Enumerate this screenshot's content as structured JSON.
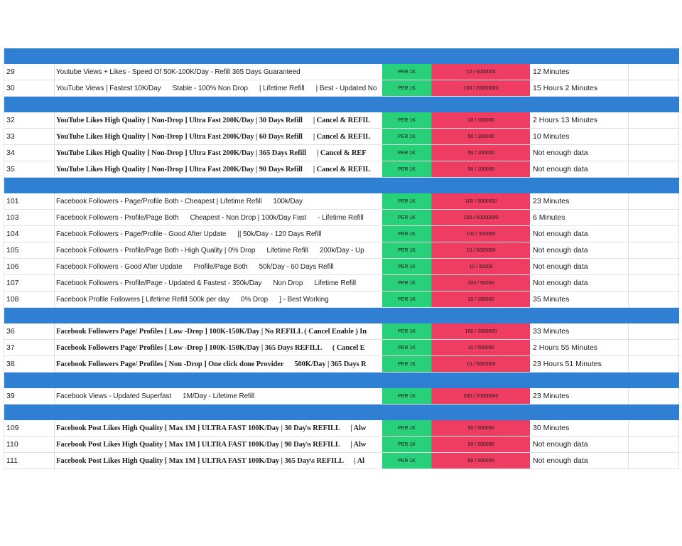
{
  "colors": {
    "separator": "#2f7fd3",
    "unit_cell": "#27d079",
    "range_cell": "#ee3c62"
  },
  "rows": [
    {
      "type": "sep"
    },
    {
      "type": "svc",
      "id": "29",
      "name": "Youtube Views + Likes - Speed Of 50K-100K/Day - Refill 365 Days Guaranteed",
      "unit": "PER 1K",
      "range": "10 / 5000000",
      "time": "12 Minutes"
    },
    {
      "type": "svc",
      "id": "30",
      "name": "YouTube Views | Fastest 10K/Day      Stable - 100% Non Drop      | Lifetime Refill      | Best - Updated No",
      "unit": "PER 1K",
      "range": "100 / 20000000",
      "time": "15 Hours 2 Minutes"
    },
    {
      "type": "sep"
    },
    {
      "type": "svc",
      "id": "32",
      "name": "YouTube Likes High Quality [ Non-Drop ] Ultra Fast 200K/Day | 30 Days Refill      | Cancel & REFIL",
      "unit": "PER 1K",
      "range": "10 / 100000",
      "time": "2 Hours 13 Minutes"
    },
    {
      "type": "svc",
      "id": "33",
      "name": "YouTube Likes High Quality [ Non-Drop ] Ultra Fast 200K/Day | 60 Days Refill      | Cancel & REFIL",
      "unit": "PER 1K",
      "range": "50 / 100000",
      "time": "10 Minutes"
    },
    {
      "type": "svc",
      "id": "34",
      "name": "YouTube Likes High Quality [ Non-Drop ] Ultra Fast 200K/Day | 365 Days Refill      | Cancel & REF",
      "unit": "PER 1K",
      "range": "50 / 100000",
      "time": "Not enough data"
    },
    {
      "type": "svc",
      "id": "35",
      "name": "YouTube Likes High Quality [ Non-Drop ] Ultra Fast 200K/Day | 90 Days Refill      | Cancel & REFIL",
      "unit": "PER 1K",
      "range": "50 / 100000",
      "time": "Not enough data"
    },
    {
      "type": "sep"
    },
    {
      "type": "svc",
      "id": "101",
      "name": "Facebook Followers - Page/Profile Both - Cheapest | Lifetime Refill      100k/Day",
      "unit": "PER 1K",
      "range": "100 / 5000000",
      "time": "23 Minutes"
    },
    {
      "type": "svc",
      "id": "103",
      "name": "Facebook Followers - Profile/Page Both      Cheapest - Non Drop | 100k/Day Fast      - Lifetime Refill",
      "unit": "PER 1K",
      "range": "100 / 50000000",
      "time": "6 Minutes"
    },
    {
      "type": "svc",
      "id": "104",
      "name": "Facebook Followers - Page/Profile - Good After Update      || 50k/Day - 120 Days Refill",
      "unit": "PER 1K",
      "range": "100 / 500000",
      "time": "Not enough data"
    },
    {
      "type": "svc",
      "id": "105",
      "name": "Facebook Followers - Profile/Page Both - High Quality | 0% Drop      Lifetime Refill      200k/Day - Up",
      "unit": "PER 1K",
      "range": "10 / 5000000",
      "time": "Not enough data"
    },
    {
      "type": "svc",
      "id": "106",
      "name": "Facebook Followers - Good After Update      Profile/Page Both      50k/Day - 60 Days Refill",
      "unit": "PER 1K",
      "range": "10 / 50000",
      "time": "Not enough data"
    },
    {
      "type": "svc",
      "id": "107",
      "name": "Facebook Followers - Profile/Page - Updated & Fastest - 350k/Day      Non Drop      Lifetime Refill",
      "unit": "PER 1K",
      "range": "100 / 50000",
      "time": "Not enough data"
    },
    {
      "type": "svc",
      "id": "108",
      "name": "Facebook Profile Followers [ Lifetime Refill 500k per day      0% Drop      ] - Best Working",
      "unit": "PER 1K",
      "range": "10 / 100000",
      "time": "35 Minutes"
    },
    {
      "type": "sep"
    },
    {
      "type": "svc",
      "id": "36",
      "name": "Facebook Followers Page/ Profiles [ Low -Drop ] 100K-150K/Day | No REFILL ( Cancel Enable ) In",
      "unit": "PER 1K",
      "range": "100 / 1000000",
      "time": "33 Minutes"
    },
    {
      "type": "svc",
      "id": "37",
      "name": "Facebook Followers Page/ Profiles [ Low -Drop ] 100K-150K/Day | 365 Days REFILL      ( Cancel E",
      "unit": "PER 1K",
      "range": "10 / 500000",
      "time": "2 Hours 55 Minutes"
    },
    {
      "type": "svc",
      "id": "38",
      "name": "Facebook Followers Page/ Profiles [ Non -Drop ] One click done Provider      500K/Day | 365 Days R",
      "unit": "PER 1K",
      "range": "10 / 5000000",
      "time": "23 Hours 51 Minutes"
    },
    {
      "type": "sep"
    },
    {
      "type": "svc",
      "id": "39",
      "name": "Facebook Views - Updated Superfast      1M/Day - Lifetime Refill",
      "unit": "PER 1K",
      "range": "200 / 20000000",
      "time": "23 Minutes"
    },
    {
      "type": "sep"
    },
    {
      "type": "svc",
      "id": "109",
      "name": "Facebook Post Likes High Quality [ Max 1M ] ULTRA FAST 100K/Day | 30 Day\\s REFILL      | Alw",
      "unit": "PER 1K",
      "range": "50 / 500000",
      "time": "30 Minutes"
    },
    {
      "type": "svc",
      "id": "110",
      "name": "Facebook Post Likes High Quality [ Max 1M ] ULTRA FAST 100K/Day | 90 Day\\s REFILL      | Alw",
      "unit": "PER 1K",
      "range": "50 / 500000",
      "time": "Not enough data"
    },
    {
      "type": "svc",
      "id": "111",
      "name": "Facebook Post Likes High Quality [ Max 1M ] ULTRA FAST 100K/Day | 365 Day\\s REFILL      | Al",
      "unit": "PER 1K",
      "range": "50 / 500000",
      "time": "Not enough data"
    }
  ]
}
